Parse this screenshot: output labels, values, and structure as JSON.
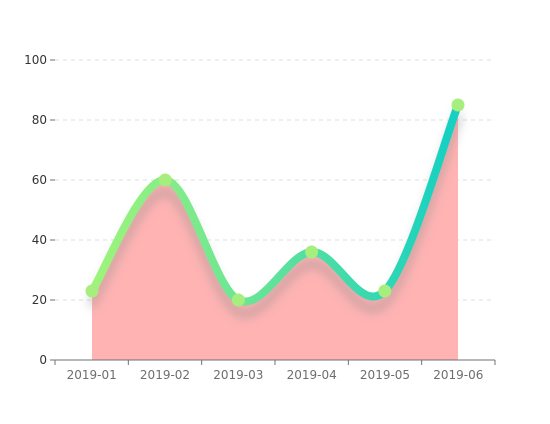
{
  "chart_data": {
    "type": "area",
    "categories": [
      "2019-01",
      "2019-02",
      "2019-03",
      "2019-04",
      "2019-05",
      "2019-06"
    ],
    "values": [
      23,
      60,
      20,
      36,
      23,
      85
    ],
    "ylim": [
      0,
      100
    ],
    "yticks": [
      0,
      20,
      40,
      60,
      80,
      100
    ],
    "grid": true,
    "smooth": true,
    "colors": {
      "area": "#ffb3b3",
      "line_start": "#9ff47a",
      "line_end": "#12d0c4",
      "marker": "#a6ef7e",
      "axis": "#6e7079",
      "grid": "#dddddd"
    }
  }
}
